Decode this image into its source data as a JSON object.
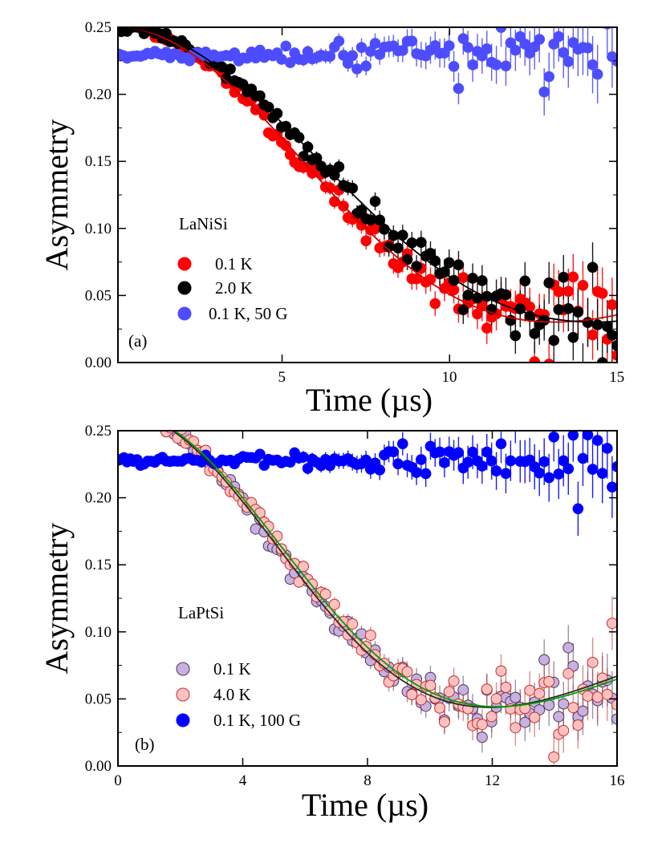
{
  "chart_data": [
    {
      "type": "scatter",
      "panel": "(a)",
      "sample": "LaNiSi",
      "xlabel": "Time (µs)",
      "ylabel": "Asymmetry",
      "xlim": [
        0.1,
        15
      ],
      "ylim": [
        0,
        0.25
      ],
      "xticks": [
        5,
        10,
        15
      ],
      "xtick_labels": [
        "5",
        "10",
        "15"
      ],
      "yticks": [
        0,
        0.05,
        0.1,
        0.15,
        0.2,
        0.25
      ],
      "ytick_labels": [
        "0.00",
        "0.05",
        "0.10",
        "0.15",
        "0.20",
        "0.25"
      ],
      "legend_position": "middle-left",
      "series": [
        {
          "name": "0.1 K",
          "label": "0.1 K",
          "color": "#ff0000",
          "edge": "#ff0000",
          "kind": "zf",
          "a0": 0.2285,
          "sigma": 0.132,
          "bg": 0.022,
          "t_end": 15,
          "fit_color": "#d00000"
        },
        {
          "name": "2.0 K",
          "label": "2.0 K",
          "color": "#000000",
          "edge": "#000000",
          "kind": "zf",
          "a0": 0.2285,
          "sigma": 0.121,
          "bg": 0.022,
          "t_end": 15,
          "fit_color": "#000000"
        },
        {
          "name": "0.1 K, 50 G",
          "label": "0.1 K, 50 G",
          "color": "#4d4dff",
          "edge": "#4d4dff",
          "kind": "lf",
          "a0": 0.229,
          "t_end": 15
        }
      ]
    },
    {
      "type": "scatter",
      "panel": "(b)",
      "sample": "LaPtSi",
      "xlabel": "Time (µs)",
      "ylabel": "Asymmetry",
      "xlim": [
        0,
        16
      ],
      "ylim": [
        0,
        0.25
      ],
      "xticks": [
        0,
        4,
        8,
        12,
        16
      ],
      "xtick_labels": [
        "0",
        "4",
        "8",
        "12",
        "16"
      ],
      "yticks": [
        0,
        0.05,
        0.1,
        0.15,
        0.2,
        0.25
      ],
      "ytick_labels": [
        "0.00",
        "0.05",
        "0.10",
        "0.15",
        "0.20",
        "0.25"
      ],
      "legend_position": "bottom-left",
      "series": [
        {
          "name": "0.1 K",
          "label": "0.1 K",
          "color": "#c8b0e0",
          "edge": "#4a3a5a",
          "kind": "zf",
          "a0": 0.229,
          "sigma": 0.1455,
          "bg": 0.0355,
          "t_end": 16,
          "fit_color": "#2a2a2a"
        },
        {
          "name": "4.0 K",
          "label": "4.0 K",
          "color": "#ffc0c0",
          "edge": "#c03030",
          "kind": "zf",
          "a0": 0.229,
          "sigma": 0.1425,
          "bg": 0.036,
          "t_end": 16,
          "fit_color": "#00a000"
        },
        {
          "name": "0.1 K, 100 G",
          "label": "0.1 K, 100 G",
          "color": "#0000ff",
          "edge": "#0000ff",
          "kind": "lf",
          "a0": 0.228,
          "t_end": 16
        }
      ]
    }
  ]
}
